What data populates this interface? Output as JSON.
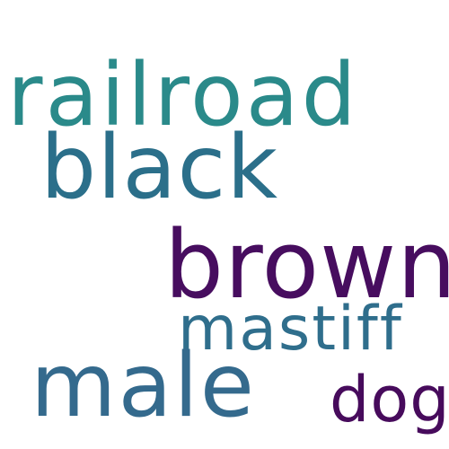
{
  "words": [
    {
      "text": "railroad",
      "color": "#2a8a8a"
    },
    {
      "text": "black",
      "color": "#2b6f8a"
    },
    {
      "text": "brown",
      "color": "#470d5f"
    },
    {
      "text": "mastiff",
      "color": "#2f6e8c"
    },
    {
      "text": "male",
      "color": "#346a8d"
    },
    {
      "text": "dog",
      "color": "#470b5c"
    }
  ]
}
